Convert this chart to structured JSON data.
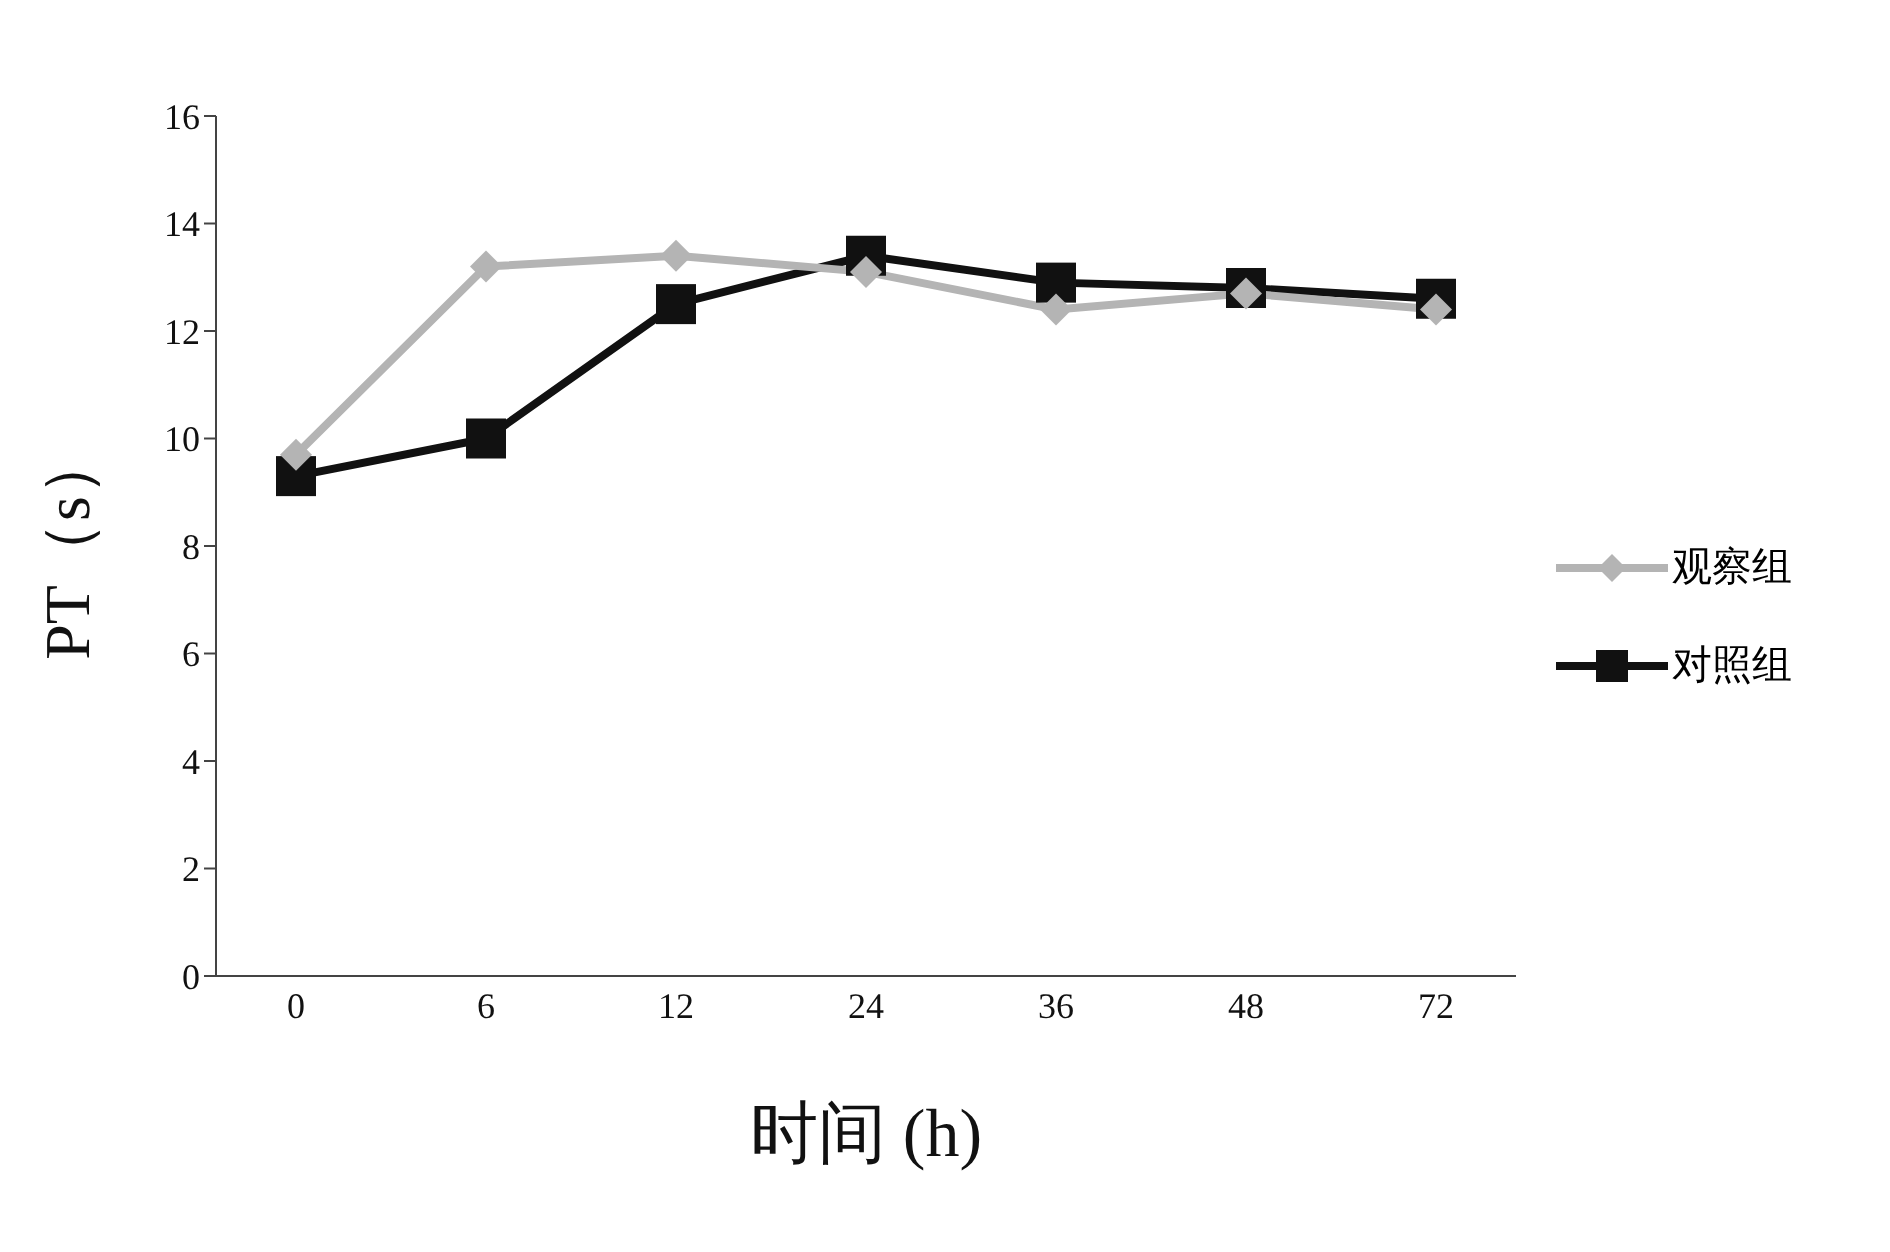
{
  "chart_data": {
    "type": "line",
    "xlabel": "时间 (h)",
    "ylabel": "PT（s）",
    "categories": [
      "0",
      "6",
      "12",
      "24",
      "36",
      "48",
      "72"
    ],
    "series": [
      {
        "name": "观察组",
        "color": "#b4b4b4",
        "marker": "diamond",
        "values": [
          9.7,
          13.2,
          13.4,
          13.1,
          12.4,
          12.7,
          12.4
        ]
      },
      {
        "name": "对照组",
        "color": "#111111",
        "marker": "square",
        "values": [
          9.3,
          10.0,
          12.5,
          13.4,
          12.9,
          12.8,
          12.6
        ]
      }
    ],
    "ylim": [
      0,
      16
    ],
    "yticks": [
      0,
      2,
      4,
      6,
      8,
      10,
      12,
      14,
      16
    ],
    "grid": false,
    "legend": "right",
    "line_style": "solid"
  }
}
